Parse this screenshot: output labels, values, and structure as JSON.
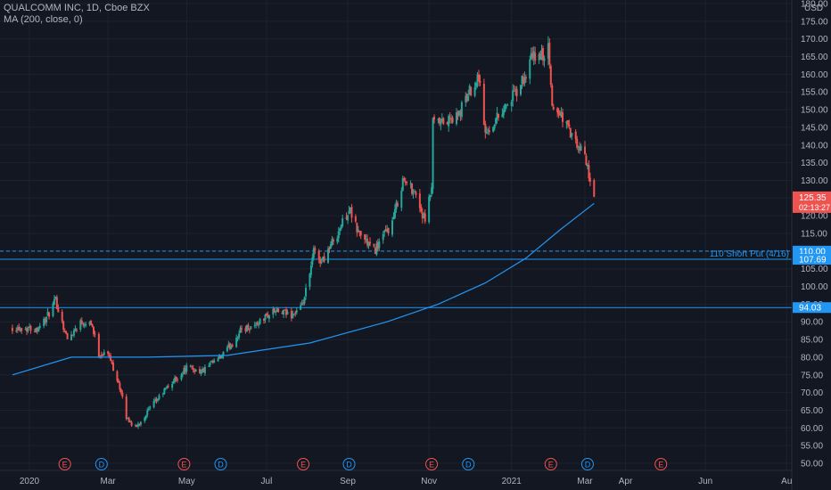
{
  "legend": {
    "symbol_line": "QUALCOMM INC, 1D, Cboe BZX",
    "ma_line": "MA (200, close, 0)"
  },
  "colors": {
    "background": "#131722",
    "grid": "#1e222d",
    "up": "#26a69a",
    "down": "#ef5350",
    "ma": "#2196f3",
    "level": "#2196f3",
    "axis_text": "#b2b5be",
    "price_badge": "#ef5350",
    "earnings_marker": "#ef5350",
    "dividend_marker": "#2196f3"
  },
  "chart_data": {
    "type": "candlestick",
    "currency": "USD",
    "ylim": [
      50,
      180
    ],
    "y_ticks": [
      "180.00",
      "175.00",
      "170.00",
      "165.00",
      "160.00",
      "155.00",
      "150.00",
      "145.00",
      "140.00",
      "135.00",
      "130.00",
      "125.00",
      "120.00",
      "115.00",
      "110.00",
      "105.00",
      "100.00",
      "95.00",
      "90.00",
      "85.00",
      "80.00",
      "75.00",
      "70.00",
      "65.00",
      "60.00",
      "55.00",
      "50.00"
    ],
    "x_ticks": [
      {
        "label": "2020",
        "date": "2020-01-02"
      },
      {
        "label": "Mar",
        "date": "2020-03-02"
      },
      {
        "label": "May",
        "date": "2020-05-01"
      },
      {
        "label": "Jul",
        "date": "2020-07-01"
      },
      {
        "label": "Sep",
        "date": "2020-09-01"
      },
      {
        "label": "Nov",
        "date": "2020-11-02"
      },
      {
        "label": "2021",
        "date": "2021-01-04"
      },
      {
        "label": "Mar",
        "date": "2021-03-01"
      },
      {
        "label": "Apr",
        "date": "2021-04-01"
      },
      {
        "label": "Jun",
        "date": "2021-06-01"
      },
      {
        "label": "Au",
        "date": "2021-08-02"
      }
    ],
    "price_path": [
      [
        "2019-12-20",
        88.5
      ],
      [
        "2020-01-07",
        88
      ],
      [
        "2020-01-15",
        91
      ],
      [
        "2020-01-22",
        96
      ],
      [
        "2020-01-31",
        85
      ],
      [
        "2020-02-10",
        90
      ],
      [
        "2020-02-18",
        90
      ],
      [
        "2020-02-24",
        81
      ],
      [
        "2020-03-02",
        81
      ],
      [
        "2020-03-10",
        73
      ],
      [
        "2020-03-16",
        63
      ],
      [
        "2020-03-23",
        60
      ],
      [
        "2020-04-02",
        65
      ],
      [
        "2020-04-15",
        71
      ],
      [
        "2020-05-01",
        77
      ],
      [
        "2020-05-13",
        76
      ],
      [
        "2020-05-27",
        80
      ],
      [
        "2020-06-05",
        84
      ],
      [
        "2020-06-12",
        88
      ],
      [
        "2020-06-22",
        89
      ],
      [
        "2020-07-06",
        93
      ],
      [
        "2020-07-20",
        92
      ],
      [
        "2020-07-28",
        94
      ],
      [
        "2020-08-03",
        103
      ],
      [
        "2020-08-06",
        110
      ],
      [
        "2020-08-12",
        107
      ],
      [
        "2020-08-24",
        115
      ],
      [
        "2020-09-02",
        122
      ],
      [
        "2020-09-08",
        116
      ],
      [
        "2020-09-21",
        110
      ],
      [
        "2020-10-05",
        118
      ],
      [
        "2020-10-13",
        130
      ],
      [
        "2020-10-22",
        127
      ],
      [
        "2020-10-30",
        118
      ],
      [
        "2020-11-04",
        128
      ],
      [
        "2020-11-05",
        146
      ],
      [
        "2020-11-12",
        146
      ],
      [
        "2020-11-24",
        148
      ],
      [
        "2020-12-04",
        156
      ],
      [
        "2020-12-10",
        160
      ],
      [
        "2020-12-15",
        143
      ],
      [
        "2020-12-28",
        150
      ],
      [
        "2021-01-08",
        155
      ],
      [
        "2021-01-14",
        159
      ],
      [
        "2021-01-20",
        165
      ],
      [
        "2021-01-27",
        165
      ],
      [
        "2021-02-01",
        167
      ],
      [
        "2021-02-04",
        151
      ],
      [
        "2021-02-12",
        148
      ],
      [
        "2021-02-22",
        140
      ],
      [
        "2021-03-01",
        137
      ],
      [
        "2021-03-08",
        125.35
      ]
    ],
    "ma200": {
      "name": "MA (200, close, 0)",
      "points": [
        [
          "2019-12-20",
          75
        ],
        [
          "2020-02-03",
          80
        ],
        [
          "2020-04-01",
          80
        ],
        [
          "2020-06-01",
          80.5
        ],
        [
          "2020-08-03",
          84
        ],
        [
          "2020-10-01",
          90
        ],
        [
          "2020-11-09",
          95
        ],
        [
          "2020-12-15",
          101
        ],
        [
          "2021-01-15",
          108
        ],
        [
          "2021-02-10",
          116
        ],
        [
          "2021-03-08",
          123.5
        ]
      ]
    },
    "last_price": {
      "value": "125.35",
      "countdown": "02:13:27"
    },
    "levels": [
      {
        "value": 110.0,
        "label": "110.00",
        "style": "dashed",
        "annotation": ""
      },
      {
        "value": 107.69,
        "label": "107.69",
        "style": "solid",
        "annotation": "110 Short Put (4/16)"
      },
      {
        "value": 94.03,
        "label": "94.03",
        "style": "solid",
        "annotation": ""
      }
    ],
    "events": [
      {
        "type": "E",
        "date": "2020-01-29"
      },
      {
        "type": "D",
        "date": "2020-02-26"
      },
      {
        "type": "E",
        "date": "2020-04-29"
      },
      {
        "type": "D",
        "date": "2020-05-27"
      },
      {
        "type": "E",
        "date": "2020-07-29"
      },
      {
        "type": "D",
        "date": "2020-09-02"
      },
      {
        "type": "E",
        "date": "2020-11-04"
      },
      {
        "type": "D",
        "date": "2020-12-02"
      },
      {
        "type": "E",
        "date": "2021-02-03"
      },
      {
        "type": "D",
        "date": "2021-03-03"
      },
      {
        "type": "E",
        "date": "2021-04-28"
      }
    ]
  }
}
